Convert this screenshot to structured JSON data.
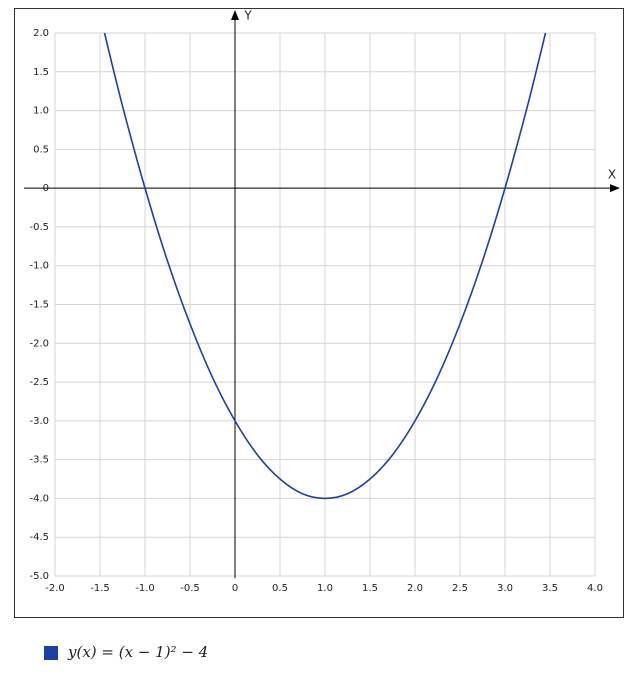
{
  "chart_data": {
    "type": "line",
    "x_label": "X",
    "y_label": "Y",
    "x": [
      -1.45,
      -1.25,
      -1.0,
      -0.75,
      -0.5,
      -0.25,
      0,
      0.25,
      0.5,
      0.75,
      1.0,
      1.25,
      1.5,
      1.75,
      2.0,
      2.25,
      2.5,
      2.75,
      3.0,
      3.25,
      3.45
    ],
    "series": [
      {
        "name": "y(x) = (x − 1)² − 4",
        "color": "#1f3fa8",
        "values": [
          2.0,
          1.06,
          0,
          -0.94,
          -1.75,
          -2.44,
          -3,
          -3.44,
          -3.75,
          -3.94,
          -4,
          -3.94,
          -3.75,
          -3.44,
          -3,
          -2.44,
          -1.75,
          -0.94,
          0,
          1.06,
          2.0
        ]
      }
    ],
    "xlim": [
      -2,
      4
    ],
    "ylim": [
      -5,
      2
    ],
    "xticks": [
      {
        "value": -2,
        "label": "-2.0"
      },
      -1.5,
      {
        "value": -1,
        "label": "-1.0"
      },
      -0.5,
      0,
      0.5,
      {
        "value": 1,
        "label": "1.0"
      },
      1.5,
      {
        "value": 2,
        "label": "2.0"
      },
      2.5,
      {
        "value": 3,
        "label": "3.0"
      },
      3.5,
      {
        "value": 4,
        "label": "4.0"
      }
    ],
    "yticks": [
      {
        "value": 2,
        "label": "2.0"
      },
      1.5,
      {
        "value": 1,
        "label": "1.0"
      },
      0.5,
      0,
      -0.5,
      {
        "value": -1,
        "label": "-1.0"
      },
      -1.5,
      {
        "value": -2,
        "label": "-2.0"
      },
      -2.5,
      {
        "value": -3,
        "label": "-3.0"
      },
      -3.5,
      {
        "value": -4,
        "label": "-4.0"
      },
      -4.5,
      {
        "value": -5,
        "label": "-5.0"
      }
    ],
    "grid": true
  }
}
